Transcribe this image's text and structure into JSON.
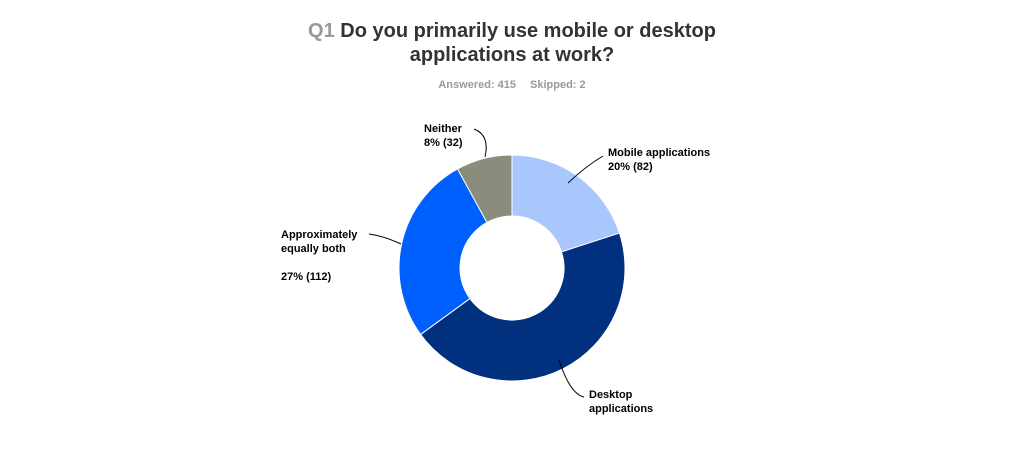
{
  "question": {
    "number": "Q1",
    "text_line1": "Do you primarily use mobile or desktop",
    "text_line2": "applications at work?"
  },
  "stats": {
    "answered": "Answered: 415",
    "skipped": "Skipped: 2"
  },
  "chart_data": {
    "type": "pie",
    "style": "donut",
    "title": "Q1 Do you primarily use mobile or desktop applications at work?",
    "slices": [
      {
        "name": "Mobile applications",
        "label_lines": [
          "Mobile applications",
          "20% (82)"
        ],
        "percent": 20,
        "count": 82,
        "color": "#A9C7FD"
      },
      {
        "name": "Desktop applications",
        "label_lines": [
          "Desktop",
          "applications"
        ],
        "percent": 45,
        "count": 189,
        "color": "#00307E"
      },
      {
        "name": "Approximately equally both",
        "label_lines": [
          "Approximately",
          "equally both",
          "",
          "27% (112)"
        ],
        "percent": 27,
        "count": 112,
        "color": "#0060FF"
      },
      {
        "name": "Neither",
        "label_lines": [
          "Neither",
          "8% (32)"
        ],
        "percent": 8,
        "count": 32,
        "color": "#8C8C7C"
      }
    ]
  }
}
